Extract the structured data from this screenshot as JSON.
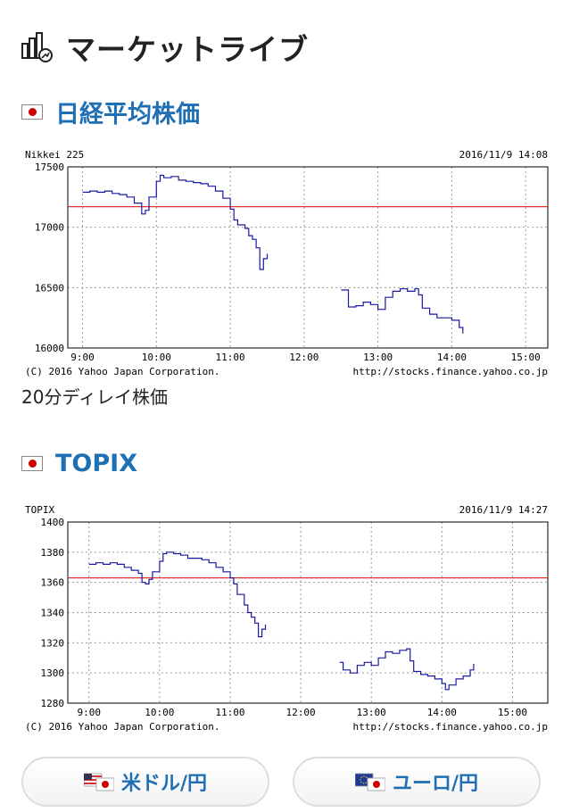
{
  "header": {
    "title": "マーケットライブ",
    "icon": "stock-chart-icon"
  },
  "sections": [
    {
      "title": "日経平均株価",
      "flag": "japan-flag-icon"
    },
    {
      "title": "TOPIX",
      "flag": "japan-flag-icon"
    }
  ],
  "delay_note": "20分ディレイ株価",
  "chart_data": [
    {
      "type": "line",
      "title": "Nikkei 225",
      "timestamp": "2016/11/9 14:08",
      "credit_left": "(C) 2016 Yahoo Japan Corporation.",
      "credit_right": "http://stocks.finance.yahoo.co.jp",
      "x_ticks": [
        "9:00",
        "10:00",
        "11:00",
        "12:00",
        "13:00",
        "14:00",
        "15:00"
      ],
      "y_ticks": [
        "16000",
        "16500",
        "17000",
        "17500"
      ],
      "xlim": [
        8.8,
        15.3
      ],
      "ylim": [
        16000,
        17500
      ],
      "reference_line": 17170,
      "reference_color": "#e03030",
      "line_color": "#1a1aa0",
      "grid": true,
      "series": [
        {
          "segment": "morning",
          "x": [
            9.0,
            9.1,
            9.2,
            9.3,
            9.4,
            9.5,
            9.6,
            9.7,
            9.8,
            9.85,
            9.9,
            10.0,
            10.05,
            10.1,
            10.2,
            10.3,
            10.4,
            10.5,
            10.6,
            10.7,
            10.8,
            10.9,
            11.0,
            11.05,
            11.1,
            11.2,
            11.25,
            11.3,
            11.35,
            11.4,
            11.45,
            11.5
          ],
          "y": [
            17290,
            17300,
            17290,
            17300,
            17280,
            17270,
            17250,
            17200,
            17110,
            17140,
            17250,
            17380,
            17430,
            17410,
            17420,
            17390,
            17380,
            17370,
            17360,
            17340,
            17300,
            17240,
            17150,
            17060,
            17020,
            16990,
            16930,
            16900,
            16830,
            16650,
            16740,
            16780
          ]
        },
        {
          "segment": "afternoon",
          "x": [
            12.5,
            12.6,
            12.7,
            12.8,
            12.9,
            13.0,
            13.1,
            13.2,
            13.3,
            13.4,
            13.5,
            13.55,
            13.6,
            13.7,
            13.8,
            13.9,
            14.0,
            14.1,
            14.15
          ],
          "y": [
            16480,
            16340,
            16350,
            16380,
            16360,
            16320,
            16420,
            16470,
            16490,
            16470,
            16490,
            16440,
            16330,
            16280,
            16250,
            16250,
            16230,
            16170,
            16120
          ]
        }
      ]
    },
    {
      "type": "line",
      "title": "TOPIX",
      "timestamp": "2016/11/9 14:27",
      "credit_left": "(C) 2016 Yahoo Japan Corporation.",
      "credit_right": "http://stocks.finance.yahoo.co.jp",
      "x_ticks": [
        "9:00",
        "10:00",
        "11:00",
        "12:00",
        "13:00",
        "14:00",
        "15:00"
      ],
      "y_ticks": [
        "1280",
        "1300",
        "1320",
        "1340",
        "1360",
        "1380",
        "1400"
      ],
      "xlim": [
        8.7,
        15.5
      ],
      "ylim": [
        1280,
        1400
      ],
      "reference_line": 1363,
      "reference_color": "#e03030",
      "line_color": "#1a1aa0",
      "grid": true,
      "series": [
        {
          "segment": "morning",
          "x": [
            9.0,
            9.1,
            9.2,
            9.3,
            9.4,
            9.5,
            9.6,
            9.7,
            9.75,
            9.8,
            9.85,
            9.9,
            10.0,
            10.05,
            10.1,
            10.2,
            10.3,
            10.4,
            10.5,
            10.6,
            10.7,
            10.8,
            10.9,
            11.0,
            11.05,
            11.1,
            11.2,
            11.25,
            11.3,
            11.35,
            11.4,
            11.45,
            11.5
          ],
          "y": [
            1372,
            1373,
            1372,
            1373,
            1372,
            1370,
            1368,
            1366,
            1360,
            1359,
            1362,
            1367,
            1374,
            1379,
            1380,
            1379,
            1378,
            1376,
            1376,
            1375,
            1373,
            1370,
            1367,
            1363,
            1359,
            1352,
            1345,
            1340,
            1337,
            1333,
            1324,
            1329,
            1332
          ]
        },
        {
          "segment": "afternoon",
          "x": [
            12.55,
            12.6,
            12.7,
            12.8,
            12.9,
            13.0,
            13.1,
            13.2,
            13.3,
            13.4,
            13.5,
            13.55,
            13.6,
            13.7,
            13.8,
            13.9,
            14.0,
            14.05,
            14.1,
            14.2,
            14.3,
            14.4,
            14.45
          ],
          "y": [
            1307,
            1302,
            1300,
            1305,
            1307,
            1305,
            1310,
            1314,
            1313,
            1315,
            1316,
            1308,
            1301,
            1299,
            1298,
            1296,
            1293,
            1289,
            1292,
            1296,
            1298,
            1302,
            1306
          ]
        }
      ]
    }
  ],
  "fx_buttons": [
    {
      "label": "米ドル/円",
      "icon": "us-japan-flag-icon"
    },
    {
      "label": "ユーロ/円",
      "icon": "eu-japan-flag-icon"
    }
  ]
}
